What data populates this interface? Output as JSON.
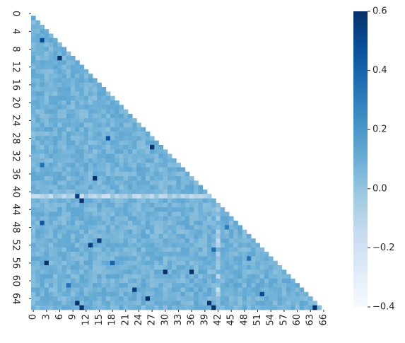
{
  "chart_data": {
    "type": "heatmap",
    "mask": "upper-triangle",
    "n": 67,
    "colormap": "Blues",
    "vmin": -0.4,
    "vmax": 0.6,
    "base_value": 0.08,
    "x_tick_labels": [
      "0",
      "3",
      "6",
      "9",
      "12",
      "15",
      "18",
      "21",
      "24",
      "27",
      "30",
      "33",
      "36",
      "39",
      "42",
      "45",
      "48",
      "51",
      "54",
      "57",
      "60",
      "63",
      "66"
    ],
    "y_tick_labels": [
      "0",
      "4",
      "8",
      "12",
      "16",
      "20",
      "24",
      "28",
      "32",
      "36",
      "40",
      "44",
      "48",
      "52",
      "56",
      "60",
      "64"
    ],
    "colorbar_ticks": [
      "0.6",
      "0.4",
      "0.2",
      "0.0",
      "−0.2",
      "−0.4"
    ],
    "highlights": [
      {
        "row": 6,
        "col": 2,
        "value": 0.5
      },
      {
        "row": 10,
        "col": 6,
        "value": 0.6
      },
      {
        "row": 30,
        "col": 27,
        "value": 0.6
      },
      {
        "row": 37,
        "col": 14,
        "value": 0.6
      },
      {
        "row": 41,
        "col": 10,
        "value": 0.55
      },
      {
        "row": 42,
        "col": 11,
        "value": 0.6
      },
      {
        "row": 28,
        "col": 17,
        "value": 0.45
      },
      {
        "row": 47,
        "col": 2,
        "value": 0.45
      },
      {
        "row": 51,
        "col": 15,
        "value": 0.55
      },
      {
        "row": 52,
        "col": 13,
        "value": 0.55
      },
      {
        "row": 56,
        "col": 3,
        "value": 0.6
      },
      {
        "row": 58,
        "col": 36,
        "value": 0.6
      },
      {
        "row": 58,
        "col": 30,
        "value": 0.6
      },
      {
        "row": 62,
        "col": 23,
        "value": 0.55
      },
      {
        "row": 63,
        "col": 52,
        "value": 0.5
      },
      {
        "row": 64,
        "col": 26,
        "value": 0.6
      },
      {
        "row": 65,
        "col": 10,
        "value": 0.6
      },
      {
        "row": 66,
        "col": 11,
        "value": 0.6
      },
      {
        "row": 65,
        "col": 40,
        "value": 0.6
      },
      {
        "row": 66,
        "col": 41,
        "value": 0.6
      },
      {
        "row": 66,
        "col": 64,
        "value": 0.6
      },
      {
        "row": 67,
        "col": 62,
        "value": 0.55
      },
      {
        "row": 68,
        "col": 53,
        "value": 0.55
      },
      {
        "row": 56,
        "col": 18,
        "value": 0.4
      },
      {
        "row": 53,
        "col": 41,
        "value": 0.35
      },
      {
        "row": 48,
        "col": 44,
        "value": 0.3
      },
      {
        "row": 67,
        "col": 26,
        "value": 0.55
      },
      {
        "row": 61,
        "col": 8,
        "value": 0.35
      },
      {
        "row": 55,
        "col": 49,
        "value": 0.35
      },
      {
        "row": 34,
        "col": 2,
        "value": 0.35
      }
    ],
    "low_rows": [
      {
        "index": 41,
        "value": -0.1
      }
    ],
    "low_cols": [
      {
        "index": 42,
        "value": -0.05
      }
    ]
  }
}
